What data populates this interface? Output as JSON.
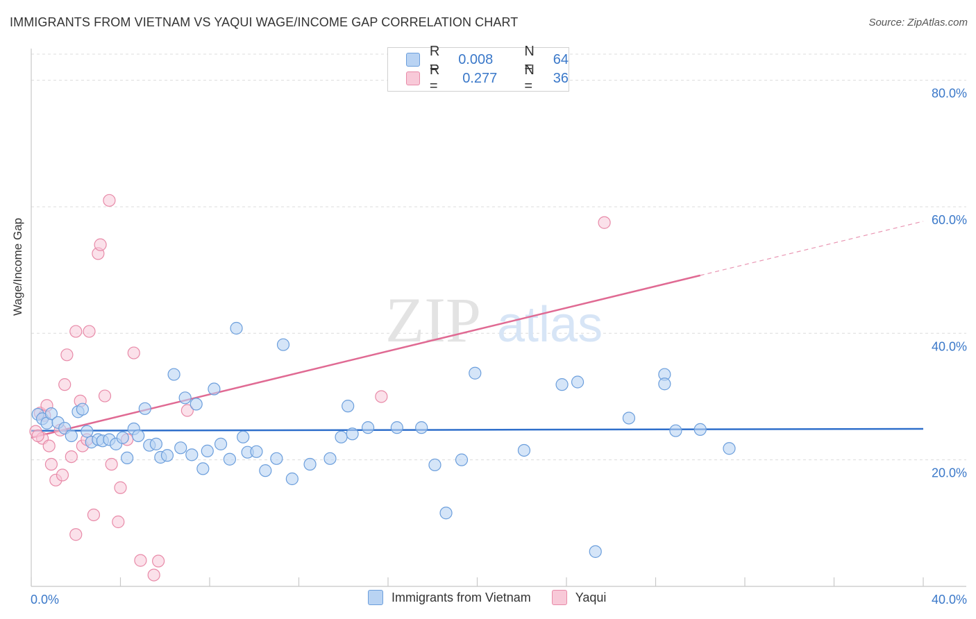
{
  "header": {
    "title": "IMMIGRANTS FROM VIETNAM VS YAQUI WAGE/INCOME GAP CORRELATION CHART",
    "source": "Source: ZipAtlas.com"
  },
  "watermark": {
    "part1": "ZIP",
    "part2": "atlas"
  },
  "legend": {
    "rows": [
      {
        "r_label": "R =",
        "r_value": "0.008",
        "n_label": "N =",
        "n_value": "64",
        "color": "#a8c8f0"
      },
      {
        "r_label": "R =",
        "r_value": "0.277",
        "n_label": "N =",
        "n_value": "36",
        "color": "#f5b8cc"
      }
    ]
  },
  "colors": {
    "blue_fill": "#b9d3f3",
    "blue_stroke": "#6b9edc",
    "blue_line": "#2f6fcb",
    "pink_fill": "#f8c9d8",
    "pink_stroke": "#e88aa8",
    "pink_line": "#e06a93",
    "tick_text": "#3a78c9"
  },
  "chart_data": {
    "type": "scatter",
    "xlabel": "",
    "ylabel": "Wage/Income Gap",
    "xlim": [
      0,
      40
    ],
    "ylim": [
      0,
      85
    ],
    "x_tick_labels": [
      {
        "value": 0,
        "label": "0.0%"
      },
      {
        "value": 40,
        "label": "40.0%"
      }
    ],
    "y_tick_labels": [
      {
        "value": 20,
        "label": "20.0%"
      },
      {
        "value": 40,
        "label": "40.0%"
      },
      {
        "value": 60,
        "label": "60.0%"
      },
      {
        "value": 80,
        "label": "80.0%"
      }
    ],
    "grid": "horizontal dashed",
    "legend_position": "bottom-center",
    "series": [
      {
        "name": "Immigrants from Vietnam",
        "color": "#6b9edc",
        "trend": {
          "x": [
            0,
            40
          ],
          "y": [
            24.6,
            24.9
          ],
          "solid_until": 40
        },
        "points": [
          [
            0.3,
            27.2
          ],
          [
            0.5,
            26.5
          ],
          [
            0.7,
            25.8
          ],
          [
            0.9,
            27.3
          ],
          [
            1.2,
            25.9
          ],
          [
            1.5,
            25.0
          ],
          [
            1.8,
            23.8
          ],
          [
            2.1,
            27.6
          ],
          [
            2.3,
            28.0
          ],
          [
            2.5,
            24.5
          ],
          [
            2.7,
            22.8
          ],
          [
            3.0,
            23.2
          ],
          [
            3.2,
            23.0
          ],
          [
            3.5,
            23.2
          ],
          [
            3.8,
            22.5
          ],
          [
            4.1,
            23.5
          ],
          [
            4.3,
            20.3
          ],
          [
            4.6,
            24.9
          ],
          [
            4.8,
            23.8
          ],
          [
            5.1,
            28.1
          ],
          [
            5.3,
            22.3
          ],
          [
            5.6,
            22.5
          ],
          [
            5.8,
            20.4
          ],
          [
            6.1,
            20.7
          ],
          [
            6.4,
            33.5
          ],
          [
            6.7,
            21.9
          ],
          [
            6.9,
            29.8
          ],
          [
            7.2,
            20.8
          ],
          [
            7.4,
            28.8
          ],
          [
            7.7,
            18.6
          ],
          [
            7.9,
            21.4
          ],
          [
            8.2,
            31.2
          ],
          [
            8.5,
            22.5
          ],
          [
            8.9,
            20.1
          ],
          [
            9.2,
            40.8
          ],
          [
            9.5,
            23.6
          ],
          [
            9.7,
            21.2
          ],
          [
            10.1,
            21.3
          ],
          [
            10.5,
            18.3
          ],
          [
            11.0,
            20.2
          ],
          [
            11.3,
            38.2
          ],
          [
            11.7,
            17.0
          ],
          [
            12.5,
            19.3
          ],
          [
            13.4,
            20.2
          ],
          [
            13.9,
            23.6
          ],
          [
            14.2,
            28.5
          ],
          [
            14.4,
            24.1
          ],
          [
            15.1,
            25.1
          ],
          [
            16.4,
            25.1
          ],
          [
            17.5,
            25.1
          ],
          [
            18.1,
            19.2
          ],
          [
            18.6,
            11.6
          ],
          [
            19.3,
            20.0
          ],
          [
            19.9,
            33.7
          ],
          [
            22.1,
            21.5
          ],
          [
            23.8,
            31.9
          ],
          [
            24.5,
            32.3
          ],
          [
            25.3,
            5.5
          ],
          [
            26.8,
            26.6
          ],
          [
            28.4,
            33.5
          ],
          [
            28.4,
            32.0
          ],
          [
            28.9,
            24.6
          ],
          [
            30.0,
            24.8
          ],
          [
            31.3,
            21.8
          ]
        ]
      },
      {
        "name": "Yaqui",
        "color": "#e88aa8",
        "trend": {
          "x": [
            0,
            40
          ],
          "y": [
            23.5,
            57.7
          ],
          "solid_until": 30
        },
        "points": [
          [
            0.2,
            24.5
          ],
          [
            0.4,
            27.4
          ],
          [
            0.5,
            23.4
          ],
          [
            0.6,
            27.0
          ],
          [
            0.7,
            28.6
          ],
          [
            0.8,
            22.2
          ],
          [
            0.9,
            19.3
          ],
          [
            1.1,
            16.8
          ],
          [
            1.3,
            24.7
          ],
          [
            1.4,
            17.6
          ],
          [
            1.5,
            31.9
          ],
          [
            1.6,
            36.6
          ],
          [
            1.8,
            20.5
          ],
          [
            2.0,
            40.3
          ],
          [
            2.2,
            29.3
          ],
          [
            2.3,
            22.2
          ],
          [
            2.5,
            23.2
          ],
          [
            2.6,
            40.3
          ],
          [
            2.8,
            11.3
          ],
          [
            3.0,
            52.6
          ],
          [
            3.1,
            54.0
          ],
          [
            3.3,
            30.1
          ],
          [
            3.5,
            61.0
          ],
          [
            3.6,
            19.3
          ],
          [
            3.9,
            10.2
          ],
          [
            4.0,
            15.6
          ],
          [
            4.3,
            23.2
          ],
          [
            4.6,
            36.9
          ],
          [
            4.9,
            4.1
          ],
          [
            5.5,
            1.8
          ],
          [
            5.7,
            4.0
          ],
          [
            7.0,
            27.8
          ],
          [
            15.7,
            30.0
          ],
          [
            2.0,
            8.2
          ],
          [
            25.7,
            57.5
          ],
          [
            0.3,
            23.8
          ]
        ]
      }
    ]
  }
}
